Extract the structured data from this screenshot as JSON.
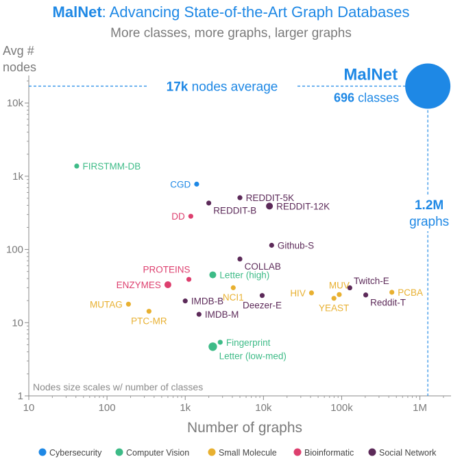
{
  "chart_data": {
    "type": "scatter",
    "title_bold": "MalNet",
    "title_rest": ": Advancing State-of-the-Art Graph Databases",
    "subtitle": "More classes, more graphs, larger graphs",
    "xlabel": "Number of graphs",
    "ylabel_line1": "Avg #",
    "ylabel_line2": "nodes",
    "x_scale": "log",
    "y_scale": "log",
    "xlim": [
      10,
      2500000
    ],
    "ylim": [
      1,
      20000
    ],
    "x_ticks": [
      {
        "value": 10,
        "label": "10"
      },
      {
        "value": 100,
        "label": "100"
      },
      {
        "value": 1000,
        "label": "1k"
      },
      {
        "value": 10000,
        "label": "10k"
      },
      {
        "value": 100000,
        "label": "100k"
      },
      {
        "value": 1000000,
        "label": "1M"
      }
    ],
    "y_ticks": [
      {
        "value": 1,
        "label": "1"
      },
      {
        "value": 10,
        "label": "10"
      },
      {
        "value": 100,
        "label": "100"
      },
      {
        "value": 1000,
        "label": "1k"
      },
      {
        "value": 10000,
        "label": "10k"
      }
    ],
    "grid": false,
    "legend_position": "bottom",
    "categories": [
      {
        "name": "Cybersecurity",
        "color": "#1e88e5"
      },
      {
        "name": "Computer Vision",
        "color": "#3dbb87"
      },
      {
        "name": "Small Molecule",
        "color": "#e8b030"
      },
      {
        "name": "Bioinformatic",
        "color": "#dd3f6e"
      },
      {
        "name": "Social Network",
        "color": "#5c2a59"
      }
    ],
    "points": [
      {
        "name": "FIRSTMM-DB",
        "x": 41,
        "y": 1377,
        "category": "Computer Vision",
        "size": 1,
        "label_side": "right"
      },
      {
        "name": "CGD",
        "x": 1400,
        "y": 780,
        "category": "Cybersecurity",
        "size": 1,
        "label_side": "left"
      },
      {
        "name": "REDDIT-5K",
        "x": 5000,
        "y": 509,
        "category": "Social Network",
        "size": 1,
        "label_side": "right"
      },
      {
        "name": "REDDIT-B",
        "x": 2000,
        "y": 430,
        "category": "Social Network",
        "size": 1,
        "label_side": "below-right"
      },
      {
        "name": "REDDIT-12K",
        "x": 11929,
        "y": 391,
        "category": "Social Network",
        "size": 2,
        "label_side": "right"
      },
      {
        "name": "DD",
        "x": 1178,
        "y": 284,
        "category": "Bioinformatic",
        "size": 1,
        "label_side": "left"
      },
      {
        "name": "Github-S",
        "x": 12725,
        "y": 114,
        "category": "Social Network",
        "size": 1,
        "label_side": "right"
      },
      {
        "name": "COLLAB",
        "x": 5000,
        "y": 74,
        "category": "Social Network",
        "size": 1,
        "label_side": "below-right"
      },
      {
        "name": "PROTEINS",
        "x": 1113,
        "y": 39,
        "category": "Bioinformatic",
        "size": 1,
        "label_side": "above-left"
      },
      {
        "name": "Letter (high)",
        "x": 2250,
        "y": 45,
        "category": "Computer Vision",
        "size": 2,
        "label_side": "right"
      },
      {
        "name": "ENZYMES",
        "x": 600,
        "y": 33,
        "category": "Bioinformatic",
        "size": 2,
        "label_side": "left"
      },
      {
        "name": "NCI1",
        "x": 4110,
        "y": 30,
        "category": "Small Molecule",
        "size": 1,
        "label_side": "below"
      },
      {
        "name": "HIV",
        "x": 41127,
        "y": 25.5,
        "category": "Small Molecule",
        "size": 1,
        "label_side": "left"
      },
      {
        "name": "MUV",
        "x": 93087,
        "y": 24.2,
        "category": "Small Molecule",
        "size": 1,
        "label_side": "above"
      },
      {
        "name": "YEAST",
        "x": 79601,
        "y": 21.5,
        "category": "Small Molecule",
        "size": 1,
        "label_side": "below"
      },
      {
        "name": "Twitch-E",
        "x": 127094,
        "y": 29.9,
        "category": "Social Network",
        "size": 1,
        "label_side": "above-right"
      },
      {
        "name": "PCBA",
        "x": 437929,
        "y": 26,
        "category": "Small Molecule",
        "size": 1,
        "label_side": "right"
      },
      {
        "name": "Reddit-T",
        "x": 203088,
        "y": 23.9,
        "category": "Social Network",
        "size": 1,
        "label_side": "below-right"
      },
      {
        "name": "Deezer-E",
        "x": 9629,
        "y": 23.5,
        "category": "Social Network",
        "size": 1,
        "label_side": "below"
      },
      {
        "name": "MUTAG",
        "x": 188,
        "y": 17.9,
        "category": "Small Molecule",
        "size": 1,
        "label_side": "left"
      },
      {
        "name": "IMDB-B",
        "x": 1000,
        "y": 19.8,
        "category": "Social Network",
        "size": 1,
        "label_side": "right"
      },
      {
        "name": "PTC-MR",
        "x": 344,
        "y": 14.3,
        "category": "Small Molecule",
        "size": 1,
        "label_side": "below"
      },
      {
        "name": "IMDB-M",
        "x": 1500,
        "y": 13,
        "category": "Social Network",
        "size": 1,
        "label_side": "right"
      },
      {
        "name": "Fingerprint",
        "x": 2800,
        "y": 5.4,
        "category": "Computer Vision",
        "size": 1,
        "label_side": "right"
      },
      {
        "name": "Letter (low-med)",
        "x": 2250,
        "y": 4.7,
        "category": "Computer Vision",
        "size": 3,
        "label_side": "below-right"
      }
    ],
    "highlight": {
      "name": "MalNet",
      "x": 1262024,
      "y": 17000,
      "category": "Cybersecurity",
      "classes_value": "696",
      "classes_word": "classes",
      "nodes_value": "17k",
      "nodes_text": "nodes average",
      "graphs_value": "1.2M",
      "graphs_word": "graphs"
    },
    "note": "Nodes size scales w/ number of classes"
  }
}
